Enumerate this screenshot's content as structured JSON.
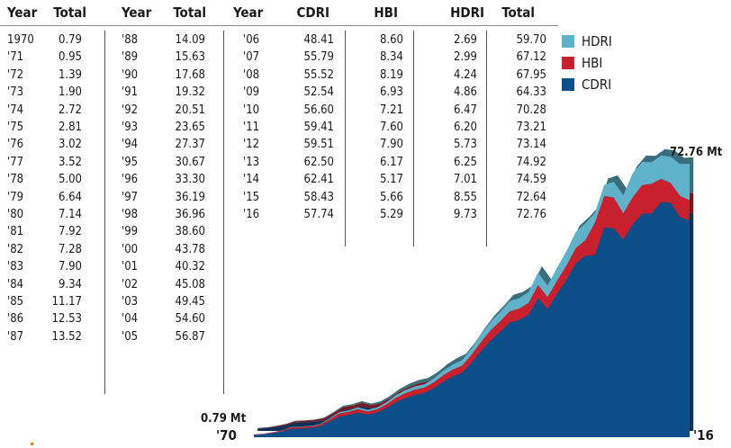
{
  "table": {
    "groups": [
      {
        "columns": [
          "Year",
          "Total"
        ],
        "rows": [
          [
            "1970",
            "0.79"
          ],
          [
            "'71",
            "0.95"
          ],
          [
            "'72",
            "1.39"
          ],
          [
            "'73",
            "1.90"
          ],
          [
            "'74",
            "2.72"
          ],
          [
            "'75",
            "2.81"
          ],
          [
            "'76",
            "3.02"
          ],
          [
            "'77",
            "3.52"
          ],
          [
            "'78",
            "5.00"
          ],
          [
            "'79",
            "6.64"
          ],
          [
            "'80",
            "7.14"
          ],
          [
            "'81",
            "7.92"
          ],
          [
            "'82",
            "7.28"
          ],
          [
            "'83",
            "7.90"
          ],
          [
            "'84",
            "9.34"
          ],
          [
            "'85",
            "11.17"
          ],
          [
            "'86",
            "12.53"
          ],
          [
            "'87",
            "13.52"
          ]
        ]
      },
      {
        "columns": [
          "Year",
          "Total"
        ],
        "rows": [
          [
            "'88",
            "14.09"
          ],
          [
            "'89",
            "15.63"
          ],
          [
            "'90",
            "17.68"
          ],
          [
            "'91",
            "19.32"
          ],
          [
            "'92",
            "20.51"
          ],
          [
            "'93",
            "23.65"
          ],
          [
            "'94",
            "27.37"
          ],
          [
            "'95",
            "30.67"
          ],
          [
            "'96",
            "33.30"
          ],
          [
            "'97",
            "36.19"
          ],
          [
            "'98",
            "36.96"
          ],
          [
            "'99",
            "38.60"
          ],
          [
            "'00",
            "43.78"
          ],
          [
            "'01",
            "40.32"
          ],
          [
            "'02",
            "45.08"
          ],
          [
            "'03",
            "49.45"
          ],
          [
            "'04",
            "54.60"
          ],
          [
            "'05",
            "56.87"
          ]
        ]
      },
      {
        "columns": [
          "Year",
          "CDRI",
          "HBI",
          "HDRI",
          "Total"
        ],
        "rows": [
          [
            "'06",
            "48.41",
            "8.60",
            "2.69",
            "59.70"
          ],
          [
            "'07",
            "55.79",
            "8.34",
            "2.99",
            "67.12"
          ],
          [
            "'08",
            "55.52",
            "8.19",
            "4.24",
            "67.95"
          ],
          [
            "'09",
            "52.54",
            "6.93",
            "4.86",
            "64.33"
          ],
          [
            "'10",
            "56.60",
            "7.21",
            "6.47",
            "70.28"
          ],
          [
            "'11",
            "59.41",
            "7.60",
            "6.20",
            "73.21"
          ],
          [
            "'12",
            "59.51",
            "7.90",
            "5.73",
            "73.14"
          ],
          [
            "'13",
            "62.50",
            "6.17",
            "6.25",
            "74.92"
          ],
          [
            "'14",
            "62.41",
            "5.17",
            "7.01",
            "74.59"
          ],
          [
            "'15",
            "58.43",
            "5.66",
            "8.55",
            "72.64"
          ],
          [
            "'16",
            "57.74",
            "5.29",
            "9.73",
            "72.76"
          ]
        ]
      }
    ]
  },
  "chart_data": {
    "type": "area",
    "stacked": true,
    "title": "",
    "xlabel": "",
    "ylabel": "",
    "x": [
      1970,
      1971,
      1972,
      1973,
      1974,
      1975,
      1976,
      1977,
      1978,
      1979,
      1980,
      1981,
      1982,
      1983,
      1984,
      1985,
      1986,
      1987,
      1988,
      1989,
      1990,
      1991,
      1992,
      1993,
      1994,
      1995,
      1996,
      1997,
      1998,
      1999,
      2000,
      2001,
      2002,
      2003,
      2004,
      2005,
      2006,
      2007,
      2008,
      2009,
      2010,
      2011,
      2012,
      2013,
      2014,
      2015,
      2016
    ],
    "totals": [
      0.79,
      0.95,
      1.39,
      1.9,
      2.72,
      2.81,
      3.02,
      3.52,
      5.0,
      6.64,
      7.14,
      7.92,
      7.28,
      7.9,
      9.34,
      11.17,
      12.53,
      13.52,
      14.09,
      15.63,
      17.68,
      19.32,
      20.51,
      23.65,
      27.37,
      30.67,
      33.3,
      36.19,
      36.96,
      38.6,
      43.78,
      40.32,
      45.08,
      49.45,
      54.6,
      56.87,
      59.7,
      67.12,
      67.95,
      64.33,
      70.28,
      73.21,
      73.14,
      74.92,
      74.59,
      72.64,
      72.76
    ],
    "series": [
      {
        "name": "CDRI",
        "color": "#0b4f8a",
        "values": [
          0.6,
          0.74,
          1.1,
          1.52,
          2.2,
          2.28,
          2.46,
          2.88,
          4.1,
          5.45,
          5.88,
          6.52,
          6.0,
          6.52,
          7.72,
          9.25,
          10.39,
          11.22,
          11.72,
          13.01,
          14.74,
          16.13,
          17.14,
          19.79,
          22.93,
          25.73,
          27.98,
          30.44,
          31.12,
          32.54,
          36.95,
          34.06,
          38.1,
          41.85,
          46.26,
          48.24,
          48.41,
          55.79,
          55.52,
          52.54,
          56.6,
          59.41,
          59.51,
          62.5,
          62.41,
          58.43,
          57.74
        ]
      },
      {
        "name": "HBI",
        "color": "#c8202f",
        "values": [
          0.15,
          0.16,
          0.22,
          0.29,
          0.39,
          0.4,
          0.42,
          0.48,
          0.64,
          0.81,
          0.85,
          0.92,
          0.82,
          0.88,
          1.02,
          1.18,
          1.3,
          1.38,
          1.43,
          1.55,
          1.71,
          1.83,
          1.91,
          2.14,
          2.43,
          2.66,
          2.82,
          3.0,
          3.03,
          3.13,
          3.47,
          3.17,
          3.48,
          3.75,
          4.06,
          4.13,
          8.6,
          8.34,
          8.19,
          6.93,
          7.21,
          7.6,
          7.9,
          6.17,
          5.17,
          5.66,
          5.29
        ]
      },
      {
        "name": "HDRI",
        "color": "#5fb2c9",
        "values": [
          0.04,
          0.05,
          0.07,
          0.09,
          0.13,
          0.13,
          0.14,
          0.16,
          0.26,
          0.38,
          0.41,
          0.48,
          0.46,
          0.5,
          0.6,
          0.74,
          0.84,
          0.92,
          0.94,
          1.07,
          1.23,
          1.36,
          1.46,
          1.72,
          2.01,
          2.28,
          2.5,
          2.75,
          2.81,
          2.93,
          3.36,
          3.09,
          3.5,
          3.85,
          4.28,
          4.5,
          2.69,
          2.99,
          4.24,
          4.86,
          6.47,
          6.2,
          5.73,
          6.25,
          7.01,
          8.55,
          9.73
        ]
      }
    ],
    "legend": {
      "placement": "top-right",
      "order": [
        "HDRI",
        "HBI",
        "CDRI"
      ]
    },
    "annotations": {
      "start_value": "0.79 Mt",
      "start_year": "'70",
      "end_value": "72.76 Mt",
      "end_year": "'16"
    },
    "grid": false
  }
}
